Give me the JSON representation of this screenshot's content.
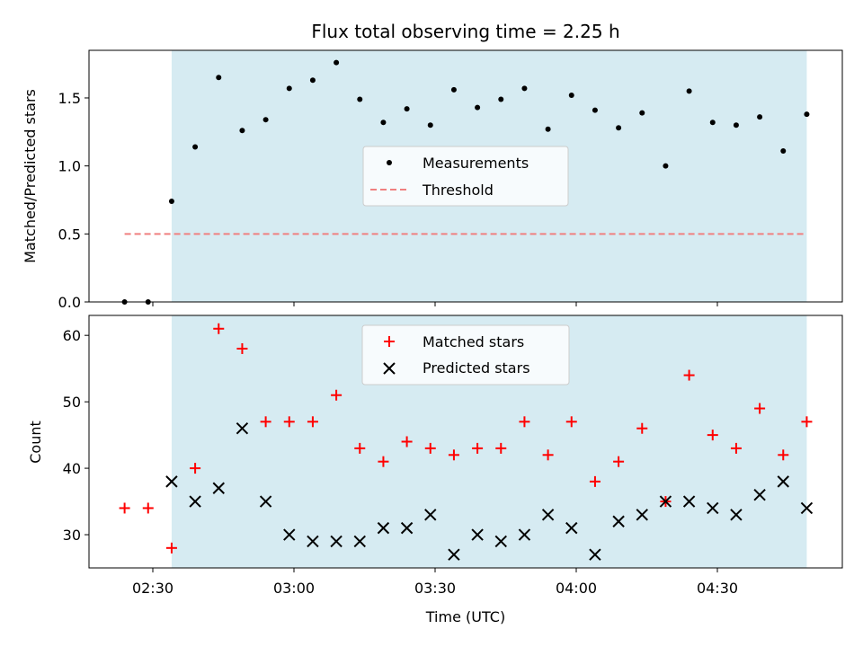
{
  "chart_data": [
    {
      "type": "scatter",
      "title": "Flux total observing time = 2.25 h",
      "xlabel": "",
      "ylabel": "Matched/Predicted stars",
      "ylim": [
        0,
        1.85
      ],
      "yticks": [
        "0.0",
        "0.5",
        "1.0",
        "1.5"
      ],
      "shaded_interval": [
        "02:34",
        "04:49"
      ],
      "shaded_color": "#add8e6",
      "legend_position": "center",
      "series": [
        {
          "name": "Measurements",
          "marker": "dot",
          "color": "#000000",
          "x": [
            "02:24",
            "02:29",
            "02:34",
            "02:39",
            "02:44",
            "02:49",
            "02:54",
            "02:59",
            "03:04",
            "03:09",
            "03:14",
            "03:19",
            "03:24",
            "03:29",
            "03:34",
            "03:39",
            "03:44",
            "03:49",
            "03:54",
            "03:59",
            "04:04",
            "04:09",
            "04:14",
            "04:19",
            "04:24",
            "04:29",
            "04:34",
            "04:39",
            "04:44",
            "04:49"
          ],
          "values": [
            0.0,
            0.0,
            0.74,
            1.14,
            1.65,
            1.26,
            1.34,
            1.57,
            1.63,
            1.76,
            1.49,
            1.32,
            1.42,
            1.3,
            1.56,
            1.43,
            1.49,
            1.57,
            1.27,
            1.52,
            1.41,
            1.28,
            1.39,
            1.0,
            1.55,
            1.32,
            1.3,
            1.36,
            1.11,
            1.38
          ]
        },
        {
          "name": "Threshold",
          "marker": "dashed-line",
          "color": "#f08080",
          "x": [
            "02:24",
            "04:49"
          ],
          "values": [
            0.5,
            0.5
          ]
        }
      ]
    },
    {
      "type": "scatter",
      "title": "",
      "xlabel": "Time (UTC)",
      "ylabel": "Count",
      "ylim": [
        25,
        63
      ],
      "yticks": [
        "30",
        "40",
        "50",
        "60"
      ],
      "xticks": [
        "02:30",
        "03:00",
        "03:30",
        "04:00",
        "04:30"
      ],
      "shaded_interval": [
        "02:34",
        "04:49"
      ],
      "shaded_color": "#add8e6",
      "legend_position": "upper center",
      "series": [
        {
          "name": "Matched stars",
          "marker": "plus",
          "color": "#ff0000",
          "x": [
            "02:24",
            "02:29",
            "02:34",
            "02:39",
            "02:44",
            "02:49",
            "02:54",
            "02:59",
            "03:04",
            "03:09",
            "03:14",
            "03:19",
            "03:24",
            "03:29",
            "03:34",
            "03:39",
            "03:44",
            "03:49",
            "03:54",
            "03:59",
            "04:04",
            "04:09",
            "04:14",
            "04:19",
            "04:24",
            "04:29",
            "04:34",
            "04:39",
            "04:44",
            "04:49"
          ],
          "values": [
            34,
            34,
            28,
            40,
            61,
            58,
            47,
            47,
            47,
            51,
            43,
            41,
            44,
            43,
            42,
            43,
            43,
            47,
            42,
            47,
            38,
            41,
            46,
            35,
            54,
            45,
            43,
            49,
            42,
            47
          ]
        },
        {
          "name": "Predicted stars",
          "marker": "x",
          "color": "#000000",
          "x": [
            "02:34",
            "02:39",
            "02:44",
            "02:49",
            "02:54",
            "02:59",
            "03:04",
            "03:09",
            "03:14",
            "03:19",
            "03:24",
            "03:29",
            "03:34",
            "03:39",
            "03:44",
            "03:49",
            "03:54",
            "03:59",
            "04:04",
            "04:09",
            "04:14",
            "04:19",
            "04:24",
            "04:29",
            "04:34",
            "04:39",
            "04:44",
            "04:49"
          ],
          "values": [
            38,
            35,
            37,
            46,
            35,
            30,
            29,
            29,
            29,
            31,
            31,
            33,
            27,
            30,
            29,
            30,
            33,
            31,
            27,
            32,
            33,
            35,
            35,
            34,
            33,
            36,
            38,
            34
          ]
        }
      ]
    }
  ]
}
